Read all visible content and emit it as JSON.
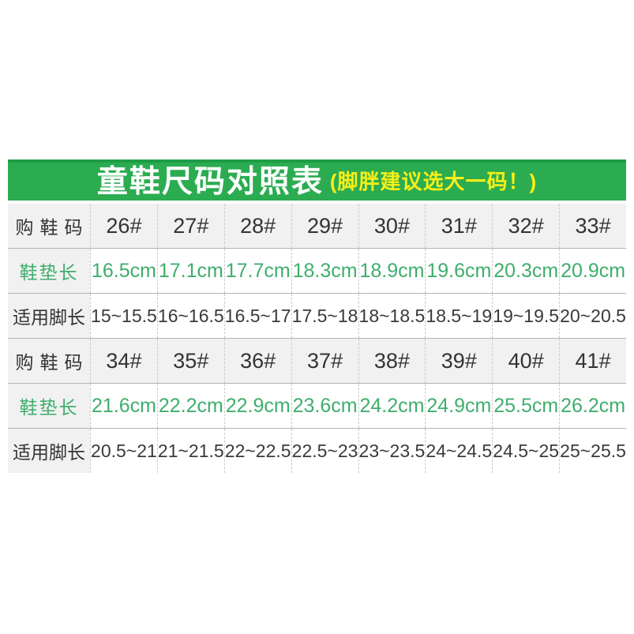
{
  "header": {
    "title": "童鞋尺码对照表",
    "subtitle": "(脚胖建议选大一码！)"
  },
  "colors": {
    "banner_green": "#2bac51",
    "banner_green_dark": "#1f9d46",
    "title_white": "#ffffff",
    "subtitle_yellow": "#f8ee18",
    "insole_green": "#3fae6d",
    "shade_gray": "#f1f1f1",
    "text_dark": "#333333",
    "line_solid": "#b3b3b3",
    "line_dash": "#c9c9c9"
  },
  "chart_data": {
    "type": "table",
    "title": "童鞋尺码对照表",
    "subtitle": "(脚胖建议选大一码！)",
    "note": "size chart: shoe size, insole length (cm), applicable foot length (cm)",
    "rows": [
      {
        "label": "购鞋码",
        "kind": "size",
        "values": [
          "26#",
          "27#",
          "28#",
          "29#",
          "30#",
          "31#",
          "32#",
          "33#"
        ]
      },
      {
        "label": "鞋垫长",
        "kind": "insole",
        "values": [
          "16.5cm",
          "17.1cm",
          "17.7cm",
          "18.3cm",
          "18.9cm",
          "19.6cm",
          "20.3cm",
          "20.9cm"
        ]
      },
      {
        "label": "适用脚长",
        "kind": "foot",
        "values": [
          "15~15.5",
          "16~16.5",
          "16.5~17",
          "17.5~18",
          "18~18.5",
          "18.5~19",
          "19~19.5",
          "20~20.5"
        ]
      },
      {
        "label": "购鞋码",
        "kind": "size",
        "values": [
          "34#",
          "35#",
          "36#",
          "37#",
          "38#",
          "39#",
          "40#",
          "41#"
        ]
      },
      {
        "label": "鞋垫长",
        "kind": "insole",
        "values": [
          "21.6cm",
          "22.2cm",
          "22.9cm",
          "23.6cm",
          "24.2cm",
          "24.9cm",
          "25.5cm",
          "26.2cm"
        ]
      },
      {
        "label": "适用脚长",
        "kind": "foot",
        "values": [
          "20.5~21",
          "21~21.5",
          "22~22.5",
          "22.5~23",
          "23~23.5",
          "24~24.5",
          "24.5~25",
          "25~25.5"
        ]
      }
    ]
  }
}
